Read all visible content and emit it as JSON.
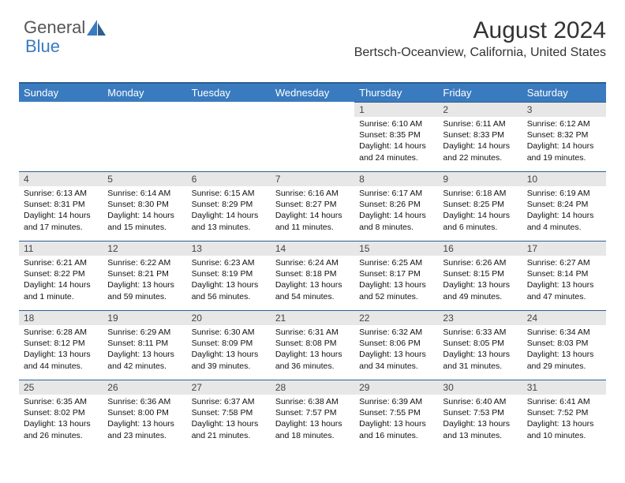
{
  "logo": {
    "text1": "General",
    "text2": "Blue"
  },
  "title": "August 2024",
  "subtitle": "Bertsch-Oceanview, California, United States",
  "colors": {
    "header_bg": "#3a7bbf",
    "header_border": "#2f5f8f",
    "daynum_bg": "#e7e7e7",
    "text": "#333333"
  },
  "daynames": [
    "Sunday",
    "Monday",
    "Tuesday",
    "Wednesday",
    "Thursday",
    "Friday",
    "Saturday"
  ],
  "weeks": [
    [
      null,
      null,
      null,
      null,
      {
        "n": "1",
        "sr": "6:10 AM",
        "ss": "8:35 PM",
        "d": "14 hours and 24 minutes."
      },
      {
        "n": "2",
        "sr": "6:11 AM",
        "ss": "8:33 PM",
        "d": "14 hours and 22 minutes."
      },
      {
        "n": "3",
        "sr": "6:12 AM",
        "ss": "8:32 PM",
        "d": "14 hours and 19 minutes."
      }
    ],
    [
      {
        "n": "4",
        "sr": "6:13 AM",
        "ss": "8:31 PM",
        "d": "14 hours and 17 minutes."
      },
      {
        "n": "5",
        "sr": "6:14 AM",
        "ss": "8:30 PM",
        "d": "14 hours and 15 minutes."
      },
      {
        "n": "6",
        "sr": "6:15 AM",
        "ss": "8:29 PM",
        "d": "14 hours and 13 minutes."
      },
      {
        "n": "7",
        "sr": "6:16 AM",
        "ss": "8:27 PM",
        "d": "14 hours and 11 minutes."
      },
      {
        "n": "8",
        "sr": "6:17 AM",
        "ss": "8:26 PM",
        "d": "14 hours and 8 minutes."
      },
      {
        "n": "9",
        "sr": "6:18 AM",
        "ss": "8:25 PM",
        "d": "14 hours and 6 minutes."
      },
      {
        "n": "10",
        "sr": "6:19 AM",
        "ss": "8:24 PM",
        "d": "14 hours and 4 minutes."
      }
    ],
    [
      {
        "n": "11",
        "sr": "6:21 AM",
        "ss": "8:22 PM",
        "d": "14 hours and 1 minute."
      },
      {
        "n": "12",
        "sr": "6:22 AM",
        "ss": "8:21 PM",
        "d": "13 hours and 59 minutes."
      },
      {
        "n": "13",
        "sr": "6:23 AM",
        "ss": "8:19 PM",
        "d": "13 hours and 56 minutes."
      },
      {
        "n": "14",
        "sr": "6:24 AM",
        "ss": "8:18 PM",
        "d": "13 hours and 54 minutes."
      },
      {
        "n": "15",
        "sr": "6:25 AM",
        "ss": "8:17 PM",
        "d": "13 hours and 52 minutes."
      },
      {
        "n": "16",
        "sr": "6:26 AM",
        "ss": "8:15 PM",
        "d": "13 hours and 49 minutes."
      },
      {
        "n": "17",
        "sr": "6:27 AM",
        "ss": "8:14 PM",
        "d": "13 hours and 47 minutes."
      }
    ],
    [
      {
        "n": "18",
        "sr": "6:28 AM",
        "ss": "8:12 PM",
        "d": "13 hours and 44 minutes."
      },
      {
        "n": "19",
        "sr": "6:29 AM",
        "ss": "8:11 PM",
        "d": "13 hours and 42 minutes."
      },
      {
        "n": "20",
        "sr": "6:30 AM",
        "ss": "8:09 PM",
        "d": "13 hours and 39 minutes."
      },
      {
        "n": "21",
        "sr": "6:31 AM",
        "ss": "8:08 PM",
        "d": "13 hours and 36 minutes."
      },
      {
        "n": "22",
        "sr": "6:32 AM",
        "ss": "8:06 PM",
        "d": "13 hours and 34 minutes."
      },
      {
        "n": "23",
        "sr": "6:33 AM",
        "ss": "8:05 PM",
        "d": "13 hours and 31 minutes."
      },
      {
        "n": "24",
        "sr": "6:34 AM",
        "ss": "8:03 PM",
        "d": "13 hours and 29 minutes."
      }
    ],
    [
      {
        "n": "25",
        "sr": "6:35 AM",
        "ss": "8:02 PM",
        "d": "13 hours and 26 minutes."
      },
      {
        "n": "26",
        "sr": "6:36 AM",
        "ss": "8:00 PM",
        "d": "13 hours and 23 minutes."
      },
      {
        "n": "27",
        "sr": "6:37 AM",
        "ss": "7:58 PM",
        "d": "13 hours and 21 minutes."
      },
      {
        "n": "28",
        "sr": "6:38 AM",
        "ss": "7:57 PM",
        "d": "13 hours and 18 minutes."
      },
      {
        "n": "29",
        "sr": "6:39 AM",
        "ss": "7:55 PM",
        "d": "13 hours and 16 minutes."
      },
      {
        "n": "30",
        "sr": "6:40 AM",
        "ss": "7:53 PM",
        "d": "13 hours and 13 minutes."
      },
      {
        "n": "31",
        "sr": "6:41 AM",
        "ss": "7:52 PM",
        "d": "13 hours and 10 minutes."
      }
    ]
  ]
}
